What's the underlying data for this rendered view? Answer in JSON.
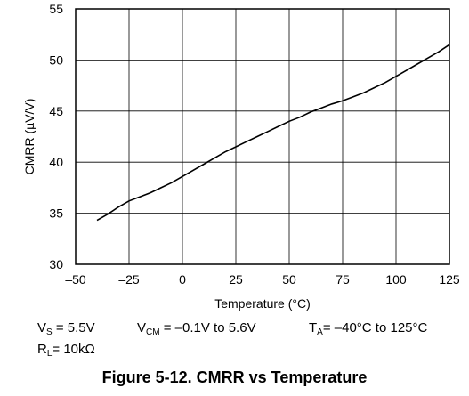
{
  "chart_data": {
    "type": "line",
    "xlabel": "Temperature (°C)",
    "ylabel": "CMRR (µV/V)",
    "xlim": [
      -50,
      125
    ],
    "ylim": [
      30,
      55
    ],
    "xticks": [
      -50,
      -25,
      0,
      25,
      50,
      75,
      100,
      125
    ],
    "yticks": [
      30,
      35,
      40,
      45,
      50,
      55
    ],
    "xtick_labels": [
      "–50",
      "–25",
      "0",
      "25",
      "50",
      "75",
      "100",
      "125"
    ],
    "ytick_labels": [
      "30",
      "35",
      "40",
      "45",
      "50",
      "55"
    ],
    "grid": true,
    "series": [
      {
        "x": [
          -40,
          -35,
          -30,
          -25,
          -20,
          -15,
          -10,
          -5,
          0,
          5,
          10,
          15,
          20,
          25,
          30,
          35,
          40,
          45,
          50,
          55,
          60,
          65,
          70,
          75,
          80,
          85,
          90,
          95,
          100,
          105,
          110,
          115,
          120,
          125
        ],
        "values": [
          34.3,
          34.9,
          35.6,
          36.2,
          36.6,
          37.0,
          37.5,
          38.0,
          38.6,
          39.2,
          39.8,
          40.4,
          41.0,
          41.5,
          42.0,
          42.5,
          43.0,
          43.5,
          44.0,
          44.4,
          44.9,
          45.3,
          45.7,
          46.0,
          46.4,
          46.8,
          47.3,
          47.8,
          48.4,
          49.0,
          49.6,
          50.2,
          50.8,
          51.5
        ]
      }
    ],
    "color": "#000000"
  },
  "conditions": {
    "vs_label": "V",
    "vs_sub": "S",
    "vs_value": " = 5.5V",
    "vcm_label": "V",
    "vcm_sub": "CM",
    "vcm_value": " = –0.1V to 5.6V",
    "ta_label": "T",
    "ta_sub": "A",
    "ta_value": "= –40°C to 125°C",
    "rl_label": "R",
    "rl_sub": "L",
    "rl_value": "= 10kΩ"
  },
  "caption": "Figure 5-12. CMRR vs Temperature"
}
